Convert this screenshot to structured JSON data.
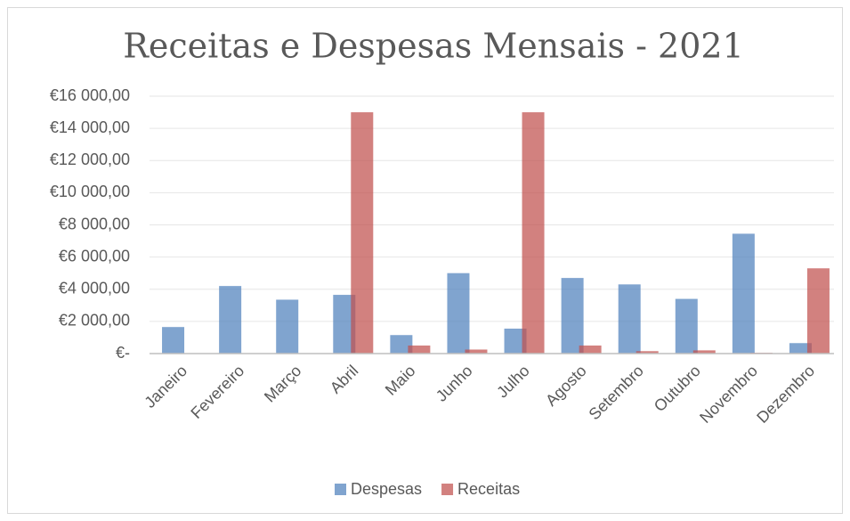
{
  "chart_data": {
    "type": "bar",
    "title": "Receitas e Despesas Mensais - 2021",
    "categories": [
      "Janeiro",
      "Fevereiro",
      "Março",
      "Abril",
      "Maio",
      "Junho",
      "Julho",
      "Agosto",
      "Setembro",
      "Outubro",
      "Novembro",
      "Dezembro"
    ],
    "series": [
      {
        "name": "Despesas",
        "color": "#4f81bd",
        "values": [
          1650,
          4200,
          3350,
          3650,
          1150,
          5000,
          1550,
          4700,
          4300,
          3400,
          7450,
          650
        ]
      },
      {
        "name": "Receitas",
        "color": "#c0504d",
        "values": [
          0,
          0,
          0,
          15000,
          500,
          250,
          15000,
          500,
          150,
          200,
          50,
          5300
        ]
      }
    ],
    "ylim": [
      0,
      16000
    ],
    "yticks": [
      {
        "value": 0,
        "label": "€-"
      },
      {
        "value": 2000,
        "label": "€2 000,00"
      },
      {
        "value": 4000,
        "label": "€4 000,00"
      },
      {
        "value": 6000,
        "label": "€6 000,00"
      },
      {
        "value": 8000,
        "label": "€8 000,00"
      },
      {
        "value": 10000,
        "label": "€10 000,00"
      },
      {
        "value": 12000,
        "label": "€12 000,00"
      },
      {
        "value": 14000,
        "label": "€14 000,00"
      },
      {
        "value": 16000,
        "label": "€16 000,00"
      }
    ],
    "grid": true,
    "legend": "bottom"
  }
}
